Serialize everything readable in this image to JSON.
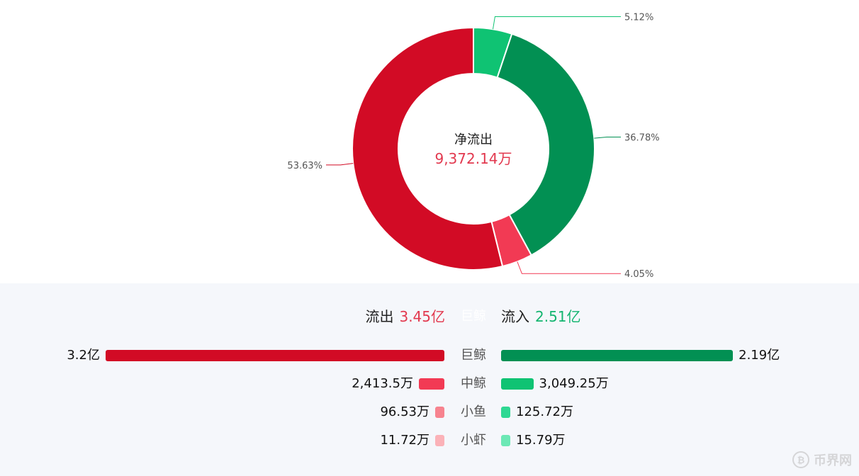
{
  "chart_data": {
    "type": "pie",
    "donut": true,
    "center": {
      "title": "净流出",
      "value": "9,372.14万",
      "value_color": "#e2394f"
    },
    "slices": [
      {
        "label": "5.12%",
        "value": 5.12,
        "color": "#0fc373"
      },
      {
        "label": "36.78%",
        "value": 36.78,
        "color": "#029053"
      },
      {
        "label": "4.05%",
        "value": 4.05,
        "color": "#f23a54"
      },
      {
        "label": "53.63%",
        "value": 53.63,
        "color": "#d20b25"
      }
    ]
  },
  "flows": {
    "out_label": "流出",
    "out_value": "3.45亿",
    "out_color": "#e2394f",
    "in_label": "流入",
    "in_value": "2.51亿",
    "in_color": "#13b570",
    "header_category": "巨鲸",
    "rows": [
      {
        "category": "巨鲸",
        "out": "3.2亿",
        "out_amount": 32000,
        "out_color": "#d20b25",
        "in": "2.19亿",
        "in_amount": 21900,
        "in_color": "#029053"
      },
      {
        "category": "中鲸",
        "out": "2,413.5万",
        "out_amount": 2413.5,
        "out_color": "#f23a54",
        "in": "3,049.25万",
        "in_amount": 3049.25,
        "in_color": "#0fc373"
      },
      {
        "category": "小鱼",
        "out": "96.53万",
        "out_amount": 96.53,
        "out_color": "#f7838f",
        "in": "125.72万",
        "in_amount": 125.72,
        "in_color": "#2ed893"
      },
      {
        "category": "小虾",
        "out": "11.72万",
        "out_amount": 11.72,
        "out_color": "#fbb2b8",
        "in": "15.79万",
        "in_amount": 15.79,
        "in_color": "#6ce8b5"
      }
    ]
  },
  "watermark": {
    "text": "币界网",
    "icon": "bitcoin-icon"
  }
}
